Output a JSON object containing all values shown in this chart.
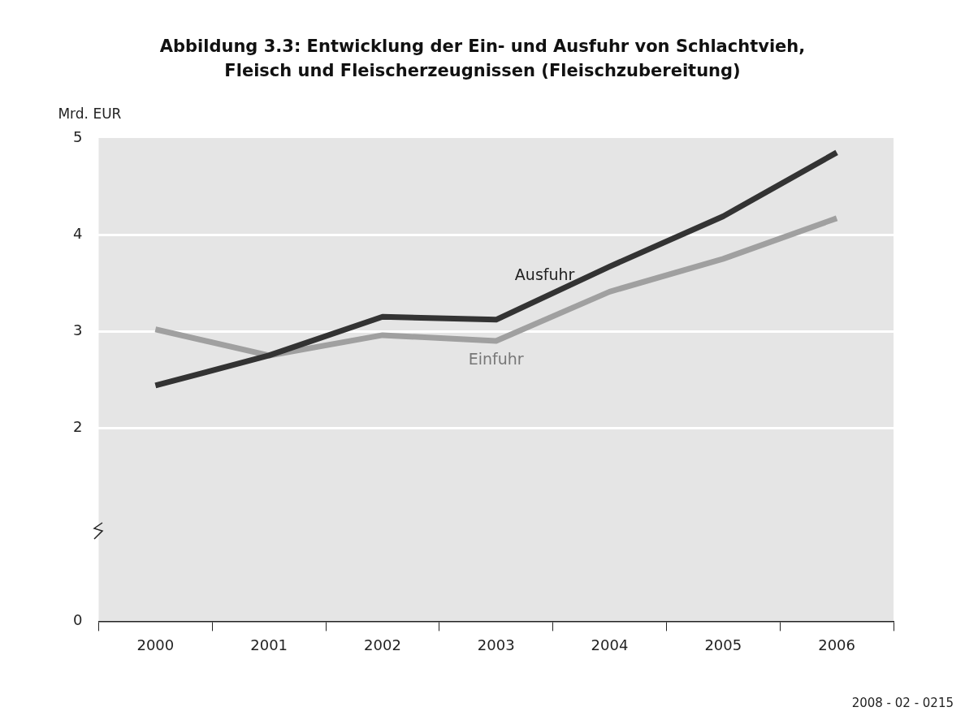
{
  "chart_data": {
    "type": "line",
    "title": "Abbildung 3.3: Entwicklung der Ein- und Ausfuhr von Schlachtvieh, Fleisch und Fleischerzeugnissen (Fleischzubereitung)",
    "ylabel": "Mrd. EUR",
    "categories": [
      "2000",
      "2001",
      "2002",
      "2003",
      "2004",
      "2005",
      "2006"
    ],
    "series": [
      {
        "name": "Ausfuhr",
        "color": "#333333",
        "values": [
          2.44,
          2.75,
          3.15,
          3.12,
          3.67,
          4.19,
          4.85
        ]
      },
      {
        "name": "Einfuhr",
        "color": "#a0a0a0",
        "values": [
          3.02,
          2.75,
          2.96,
          2.9,
          3.41,
          3.75,
          4.17
        ]
      }
    ],
    "ylim": [
      0,
      5
    ],
    "yticks": [
      0,
      2,
      3,
      4,
      5
    ],
    "grid": "y",
    "legend": false,
    "marker": "none",
    "line_style": "solid",
    "annotations": [
      "2008 - 02 - 0215"
    ]
  }
}
